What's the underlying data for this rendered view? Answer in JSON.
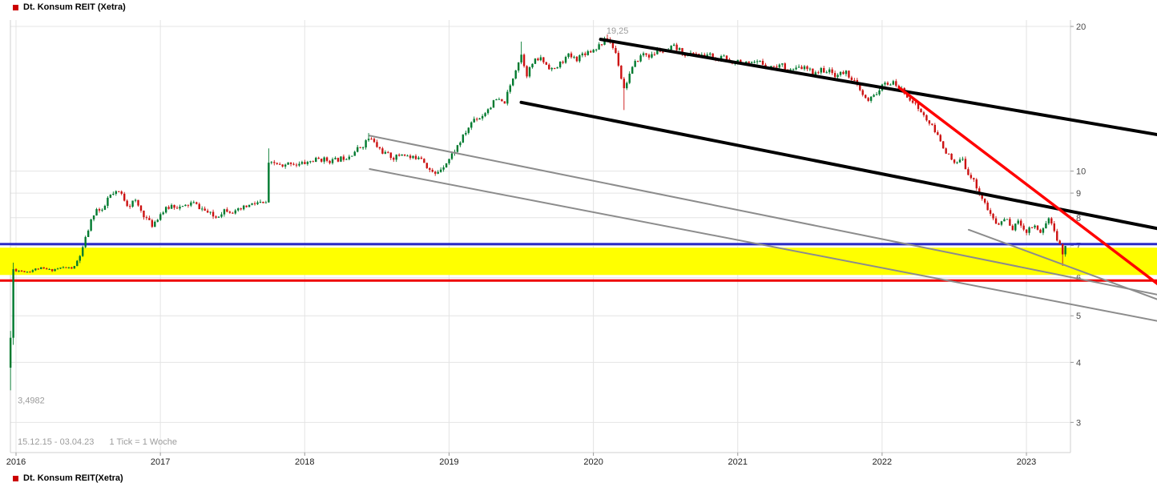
{
  "header": {
    "title": "Dt. Konsum REIT (Xetra)",
    "marker_color": "#cc0000"
  },
  "footer": {
    "range_text": "15.12.15 - 03.04.23",
    "tick_text": "1 Tick = 1 Woche"
  },
  "bottom_legend": {
    "label": "Dt. Konsum REIT(Xetra)"
  },
  "chart_data": {
    "type": "candlestick",
    "title": "Dt. Konsum REIT (Xetra)",
    "x_axis": {
      "tick_labels": [
        "2016",
        "2017",
        "2018",
        "2019",
        "2020",
        "2021",
        "2022",
        "2023"
      ],
      "tick_years": [
        2016,
        2017,
        2018,
        2019,
        2020,
        2021,
        2022,
        2023
      ],
      "range_years": [
        2015.93,
        2023.98
      ]
    },
    "y_axis": {
      "scale": "log",
      "side": "right",
      "tick_values": [
        20,
        10,
        9,
        8,
        7,
        6,
        5,
        4,
        3
      ],
      "range": [
        2.6,
        20.6
      ]
    },
    "annotations": {
      "high": {
        "text": "19,25",
        "year": 2020.1,
        "price": 19.25
      },
      "low": {
        "text": "3,4982",
        "year": 2015.962,
        "price": 3.4982
      }
    },
    "horizontal_levels": {
      "support_band": {
        "from": 6.08,
        "to": 6.93,
        "color": "#ffff00"
      },
      "resistance_line": {
        "price": 7.05,
        "color": "#2b2bc8",
        "width": 3
      },
      "support_line": {
        "price": 5.92,
        "color": "#ee0000",
        "width": 3
      }
    },
    "trend_lines": [
      {
        "name": "gray-channel-upper-line",
        "color": "#8c8c8c",
        "width": 2,
        "from": [
          2018.45,
          11.85
        ],
        "to": [
          2023.95,
          5.5
        ]
      },
      {
        "name": "gray-channel-lower-line",
        "color": "#8c8c8c",
        "width": 2,
        "from": [
          2018.45,
          10.1
        ],
        "to": [
          2023.95,
          4.85
        ]
      },
      {
        "name": "gray-short-trend-line",
        "color": "#8c8c8c",
        "width": 2,
        "from": [
          2022.6,
          7.55
        ],
        "to": [
          2023.95,
          5.35
        ]
      },
      {
        "name": "black-channel-upper-line",
        "color": "#000000",
        "width": 4,
        "from": [
          2020.05,
          18.8
        ],
        "to": [
          2023.95,
          11.85
        ]
      },
      {
        "name": "black-channel-lower-line",
        "color": "#000000",
        "width": 4,
        "from": [
          2019.5,
          13.9
        ],
        "to": [
          2023.95,
          7.55
        ]
      },
      {
        "name": "red-downtrend-line",
        "color": "#ff0000",
        "width": 3.5,
        "from": [
          2022.12,
          14.9
        ],
        "to": [
          2023.95,
          5.7
        ]
      }
    ],
    "candle_colors": {
      "up": "#007a2f",
      "down": "#cc1111"
    },
    "weekly_step_years": 0.019231,
    "series_anchors": [
      [
        2015.962,
        4.5
      ],
      [
        2015.981,
        6.25
      ],
      [
        2016.0,
        6.22
      ],
      [
        2016.08,
        6.18
      ],
      [
        2016.16,
        6.28
      ],
      [
        2016.24,
        6.22
      ],
      [
        2016.32,
        6.3
      ],
      [
        2016.4,
        6.28
      ],
      [
        2016.46,
        6.85
      ],
      [
        2016.5,
        7.55
      ],
      [
        2016.55,
        8.35
      ],
      [
        2016.6,
        8.2
      ],
      [
        2016.64,
        8.85
      ],
      [
        2016.72,
        9.05
      ],
      [
        2016.78,
        8.45
      ],
      [
        2016.82,
        8.7
      ],
      [
        2016.88,
        8.15
      ],
      [
        2016.94,
        7.7
      ],
      [
        2017.0,
        8.15
      ],
      [
        2017.08,
        8.5
      ],
      [
        2017.15,
        8.38
      ],
      [
        2017.22,
        8.6
      ],
      [
        2017.3,
        8.3
      ],
      [
        2017.38,
        8.0
      ],
      [
        2017.45,
        8.35
      ],
      [
        2017.52,
        8.2
      ],
      [
        2017.6,
        8.45
      ],
      [
        2017.68,
        8.6
      ],
      [
        2017.73,
        8.5
      ],
      [
        2017.75,
        10.3
      ],
      [
        2017.8,
        10.4
      ],
      [
        2017.85,
        10.15
      ],
      [
        2017.9,
        10.45
      ],
      [
        2017.95,
        10.3
      ],
      [
        2018.0,
        10.4
      ],
      [
        2018.1,
        10.6
      ],
      [
        2018.2,
        10.5
      ],
      [
        2018.3,
        10.75
      ],
      [
        2018.4,
        11.3
      ],
      [
        2018.45,
        11.75
      ],
      [
        2018.5,
        11.25
      ],
      [
        2018.55,
        10.9
      ],
      [
        2018.62,
        10.65
      ],
      [
        2018.68,
        10.9
      ],
      [
        2018.74,
        10.6
      ],
      [
        2018.8,
        10.8
      ],
      [
        2018.86,
        10.1
      ],
      [
        2018.9,
        9.8
      ],
      [
        2018.95,
        10.2
      ],
      [
        2019.0,
        10.6
      ],
      [
        2019.06,
        11.3
      ],
      [
        2019.12,
        12.1
      ],
      [
        2019.17,
        12.85
      ],
      [
        2019.22,
        12.95
      ],
      [
        2019.28,
        13.6
      ],
      [
        2019.33,
        14.1
      ],
      [
        2019.38,
        13.8
      ],
      [
        2019.42,
        14.9
      ],
      [
        2019.46,
        16.3
      ],
      [
        2019.5,
        17.5
      ],
      [
        2019.54,
        15.9
      ],
      [
        2019.58,
        16.8
      ],
      [
        2019.63,
        17.2
      ],
      [
        2019.68,
        16.6
      ],
      [
        2019.73,
        16.2
      ],
      [
        2019.78,
        16.9
      ],
      [
        2019.83,
        17.4
      ],
      [
        2019.88,
        17.1
      ],
      [
        2019.93,
        17.6
      ],
      [
        2020.0,
        17.9
      ],
      [
        2020.05,
        18.4
      ],
      [
        2020.1,
        18.9
      ],
      [
        2020.16,
        17.5
      ],
      [
        2020.21,
        14.8
      ],
      [
        2020.25,
        15.9
      ],
      [
        2020.3,
        17.0
      ],
      [
        2020.35,
        17.6
      ],
      [
        2020.4,
        17.3
      ],
      [
        2020.45,
        17.9
      ],
      [
        2020.5,
        17.6
      ],
      [
        2020.55,
        18.15
      ],
      [
        2020.6,
        17.8
      ],
      [
        2020.65,
        17.4
      ],
      [
        2020.7,
        17.7
      ],
      [
        2020.75,
        17.3
      ],
      [
        2020.8,
        17.55
      ],
      [
        2020.85,
        17.0
      ],
      [
        2020.9,
        17.25
      ],
      [
        2020.95,
        16.85
      ],
      [
        2021.0,
        17.0
      ],
      [
        2021.08,
        16.6
      ],
      [
        2021.15,
        16.85
      ],
      [
        2021.22,
        16.45
      ],
      [
        2021.3,
        16.65
      ],
      [
        2021.38,
        16.2
      ],
      [
        2021.45,
        16.45
      ],
      [
        2021.52,
        16.05
      ],
      [
        2021.6,
        16.25
      ],
      [
        2021.68,
        15.85
      ],
      [
        2021.75,
        16.05
      ],
      [
        2021.8,
        15.5
      ],
      [
        2021.85,
        14.6
      ],
      [
        2021.9,
        13.9
      ],
      [
        2021.95,
        14.45
      ],
      [
        2022.0,
        15.0
      ],
      [
        2022.05,
        15.3
      ],
      [
        2022.1,
        15.1
      ],
      [
        2022.15,
        14.6
      ],
      [
        2022.2,
        14.1
      ],
      [
        2022.25,
        13.5
      ],
      [
        2022.3,
        12.9
      ],
      [
        2022.35,
        12.3
      ],
      [
        2022.4,
        11.6
      ],
      [
        2022.45,
        10.9
      ],
      [
        2022.5,
        10.3
      ],
      [
        2022.55,
        10.6
      ],
      [
        2022.6,
        9.9
      ],
      [
        2022.65,
        9.35
      ],
      [
        2022.7,
        8.7
      ],
      [
        2022.75,
        8.1
      ],
      [
        2022.8,
        7.7
      ],
      [
        2022.85,
        8.0
      ],
      [
        2022.9,
        7.6
      ],
      [
        2022.95,
        7.85
      ],
      [
        2023.0,
        7.5
      ],
      [
        2023.05,
        7.75
      ],
      [
        2023.1,
        7.45
      ],
      [
        2023.15,
        8.0
      ],
      [
        2023.19,
        7.6
      ],
      [
        2023.22,
        7.1
      ],
      [
        2023.25,
        6.75
      ],
      [
        2023.27,
        6.95
      ]
    ],
    "candle_overrides": [
      {
        "t": 2015.962,
        "o": 3.9,
        "h": 4.65,
        "l": 3.4982,
        "c": 4.5
      },
      {
        "t": 2015.981,
        "o": 4.5,
        "h": 6.45,
        "l": 4.35,
        "c": 6.25
      },
      {
        "t": 2017.75,
        "h": 11.15
      },
      {
        "t": 2018.45,
        "h": 12.0
      },
      {
        "t": 2019.5,
        "h": 18.6
      },
      {
        "t": 2020.1,
        "h": 19.25
      },
      {
        "t": 2020.21,
        "l": 13.4
      },
      {
        "t": 2023.25,
        "l": 6.35
      }
    ]
  }
}
